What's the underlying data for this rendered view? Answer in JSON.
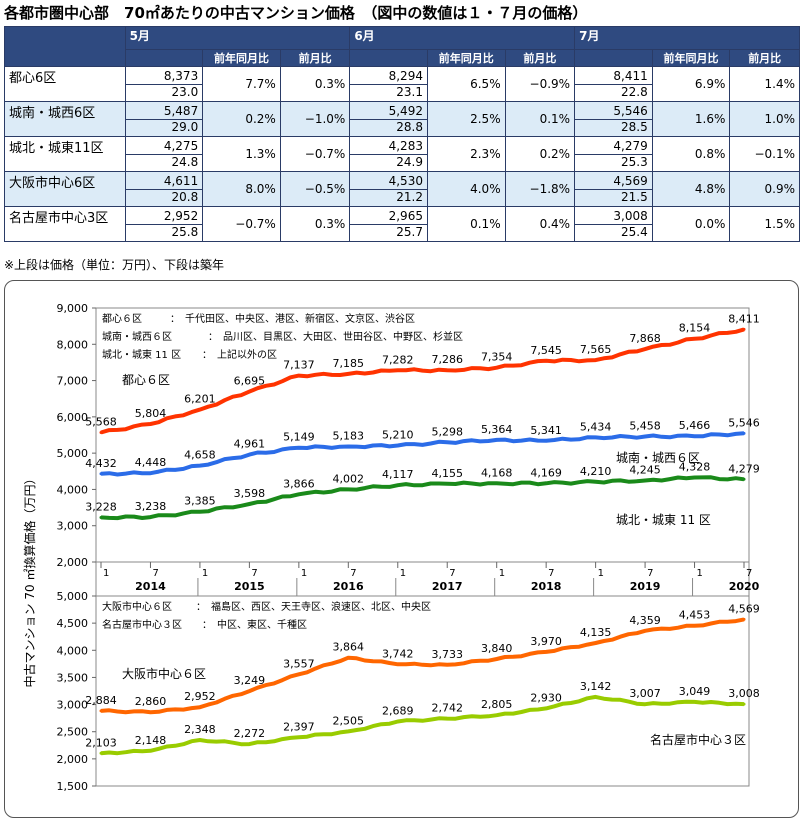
{
  "title": "各都市圏中心部　70㎡あたりの中古マンション価格　（図中の数値は１・７月の価格）",
  "table": {
    "months": [
      "5月",
      "6月",
      "7月"
    ],
    "yoy_label": "前年同月比",
    "mom_label": "前月比",
    "rows": [
      {
        "area": "都心6区",
        "cells": [
          {
            "price": "8,373",
            "age": "23.0",
            "yoy": "7.7%",
            "mom": "0.3%"
          },
          {
            "price": "8,294",
            "age": "23.1",
            "yoy": "6.5%",
            "mom": "−0.9%"
          },
          {
            "price": "8,411",
            "age": "22.8",
            "yoy": "6.9%",
            "mom": "1.4%"
          }
        ]
      },
      {
        "area": "城南・城西6区",
        "cells": [
          {
            "price": "5,487",
            "age": "29.0",
            "yoy": "0.2%",
            "mom": "−1.0%"
          },
          {
            "price": "5,492",
            "age": "28.8",
            "yoy": "2.5%",
            "mom": "0.1%"
          },
          {
            "price": "5,546",
            "age": "28.5",
            "yoy": "1.6%",
            "mom": "1.0%"
          }
        ]
      },
      {
        "area": "城北・城東11区",
        "cells": [
          {
            "price": "4,275",
            "age": "24.8",
            "yoy": "1.3%",
            "mom": "−0.7%"
          },
          {
            "price": "4,283",
            "age": "24.9",
            "yoy": "2.3%",
            "mom": "0.2%"
          },
          {
            "price": "4,279",
            "age": "25.3",
            "yoy": "0.8%",
            "mom": "−0.1%"
          }
        ]
      },
      {
        "area": "大阪市中心6区",
        "cells": [
          {
            "price": "4,611",
            "age": "20.8",
            "yoy": "8.0%",
            "mom": "−0.5%"
          },
          {
            "price": "4,530",
            "age": "21.2",
            "yoy": "4.0%",
            "mom": "−1.8%"
          },
          {
            "price": "4,569",
            "age": "21.5",
            "yoy": "4.8%",
            "mom": "0.9%"
          }
        ]
      },
      {
        "area": "名古屋市中心3区",
        "cells": [
          {
            "price": "2,952",
            "age": "25.8",
            "yoy": "−0.7%",
            "mom": "0.3%"
          },
          {
            "price": "2,965",
            "age": "25.7",
            "yoy": "0.1%",
            "mom": "0.4%"
          },
          {
            "price": "3,008",
            "age": "25.4",
            "yoy": "0.0%",
            "mom": "1.5%"
          }
        ]
      }
    ],
    "note": "※上段は価格（単位：万円）、下段は築年"
  },
  "chart_data": [
    {
      "type": "line",
      "ylabel": "中古マンション 70 ㎡換算価格（万円）",
      "ylim": [
        2000,
        9000
      ],
      "yticks": [
        2000,
        3000,
        4000,
        5000,
        6000,
        7000,
        8000,
        9000
      ],
      "month_ticks": [
        "1",
        "7",
        "1",
        "7",
        "1",
        "7",
        "1",
        "7",
        "1",
        "7",
        "1",
        "7",
        "1",
        "7"
      ],
      "years": [
        "2014",
        "2015",
        "2016",
        "2017",
        "2018",
        "2019",
        "2020"
      ],
      "x": [
        "2014-01",
        "2014-07",
        "2015-01",
        "2015-07",
        "2016-01",
        "2016-07",
        "2017-01",
        "2017-07",
        "2018-01",
        "2018-07",
        "2019-01",
        "2019-07",
        "2020-01",
        "2020-07"
      ],
      "legend_notes": [
        {
          "label": "都心６区",
          "areas": "千代田区、中央区、港区、新宿区、文京区、渋谷区"
        },
        {
          "label": "城南・城西６区",
          "areas": "品川区、目黒区、大田区、世田谷区、中野区、杉並区"
        },
        {
          "label": "城北・城東 11 区",
          "areas": "上記以外の区"
        }
      ],
      "series": [
        {
          "name": "都心６区",
          "color": "#ff3300",
          "values": [
            5568,
            5804,
            6201,
            6695,
            7137,
            7185,
            7282,
            7286,
            7354,
            7545,
            7565,
            7868,
            8154,
            8411
          ]
        },
        {
          "name": "城南・城西６区",
          "color": "#2b6ce8",
          "values": [
            4432,
            4448,
            4658,
            4961,
            5149,
            5183,
            5210,
            5298,
            5364,
            5341,
            5434,
            5458,
            5466,
            5546
          ]
        },
        {
          "name": "城北・城東 11 区",
          "color": "#1a8a1a",
          "values": [
            3228,
            3238,
            3385,
            3598,
            3866,
            4002,
            4117,
            4155,
            4168,
            4169,
            4210,
            4245,
            4328,
            4279
          ]
        }
      ]
    },
    {
      "type": "line",
      "ylim": [
        1500,
        5000
      ],
      "yticks": [
        1500,
        2000,
        2500,
        3000,
        3500,
        4000,
        4500,
        5000
      ],
      "x": [
        "2014-01",
        "2014-07",
        "2015-01",
        "2015-07",
        "2016-01",
        "2016-07",
        "2017-01",
        "2017-07",
        "2018-01",
        "2018-07",
        "2019-01",
        "2019-07",
        "2020-01",
        "2020-07"
      ],
      "legend_notes": [
        {
          "label": "大阪市中心６区",
          "areas": "福島区、西区、天王寺区、浪速区、北区、中央区"
        },
        {
          "label": "名古屋市中心３区",
          "areas": "中区、東区、千種区"
        }
      ],
      "series": [
        {
          "name": "大阪市中心６区",
          "color": "#ff6600",
          "values": [
            2884,
            2860,
            2952,
            3249,
            3557,
            3864,
            3742,
            3733,
            3840,
            3970,
            4135,
            4359,
            4453,
            4569
          ]
        },
        {
          "name": "名古屋市中心３区",
          "color": "#99cc00",
          "values": [
            2103,
            2148,
            2348,
            2272,
            2397,
            2505,
            2689,
            2742,
            2805,
            2930,
            3142,
            3007,
            3049,
            3008
          ]
        }
      ]
    }
  ]
}
